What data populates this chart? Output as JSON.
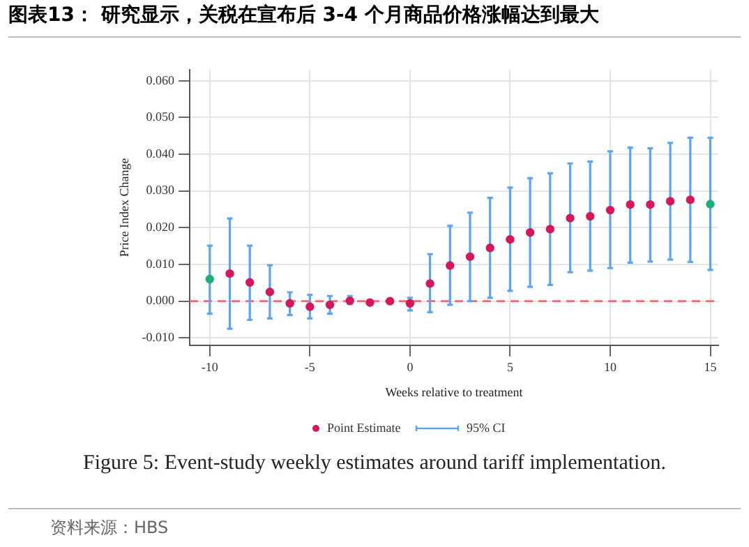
{
  "chart_data": {
    "type": "scatter",
    "title": "图表13：  研究显示，关税在宣布后 3-4 个月商品价格涨幅达到最大",
    "xlabel": "Weeks relative to treatment",
    "ylabel": "Price Index Change",
    "x": [
      -10,
      -9,
      -8,
      -7,
      -6,
      -5,
      -4,
      -3,
      -2,
      -1,
      0,
      1,
      2,
      3,
      4,
      5,
      6,
      7,
      8,
      9,
      10,
      11,
      12,
      13,
      14,
      15
    ],
    "series": [
      {
        "name": "Point Estimate",
        "color": "#d6175c",
        "colors": [
          "#1bb07a",
          "#d6175c",
          "#d6175c",
          "#d6175c",
          "#d6175c",
          "#d6175c",
          "#d6175c",
          "#d6175c",
          "#d6175c",
          "#d6175c",
          "#d6175c",
          "#d6175c",
          "#d6175c",
          "#d6175c",
          "#d6175c",
          "#d6175c",
          "#d6175c",
          "#d6175c",
          "#d6175c",
          "#d6175c",
          "#d6175c",
          "#d6175c",
          "#d6175c",
          "#d6175c",
          "#d6175c",
          "#1bb07a"
        ],
        "values": [
          0.006,
          0.0075,
          0.0051,
          0.0025,
          -0.0006,
          -0.0015,
          -0.001,
          0.0001,
          -0.0004,
          0.0,
          -0.0006,
          0.0048,
          0.0097,
          0.0121,
          0.0145,
          0.0168,
          0.0187,
          0.0196,
          0.0226,
          0.0231,
          0.0248,
          0.0263,
          0.0263,
          0.0272,
          0.0276,
          0.0264
        ],
        "errors": [
          [
            -0.0034,
            0.0151
          ],
          [
            -0.0075,
            0.0225
          ],
          [
            -0.0051,
            0.0151
          ],
          [
            -0.0047,
            0.0098
          ],
          [
            -0.0038,
            0.0024
          ],
          [
            -0.0047,
            0.0017
          ],
          [
            -0.0034,
            0.0014
          ],
          [
            -0.0008,
            0.0014
          ],
          [
            -0.0007,
            -0.0001
          ],
          null,
          [
            -0.0025,
            0.0009
          ],
          [
            -0.003,
            0.0128
          ],
          [
            -0.001,
            0.0205
          ],
          [
            0.0,
            0.0241
          ],
          [
            0.0009,
            0.0281
          ],
          [
            0.0028,
            0.0309
          ],
          [
            0.0039,
            0.0335
          ],
          [
            0.0044,
            0.0348
          ],
          [
            0.0079,
            0.0375
          ],
          [
            0.0083,
            0.038
          ],
          [
            0.009,
            0.0408
          ],
          [
            0.0105,
            0.0418
          ],
          [
            0.0108,
            0.0416
          ],
          [
            0.0113,
            0.0431
          ],
          [
            0.0107,
            0.0445
          ],
          [
            0.0085,
            0.0445
          ]
        ]
      }
    ],
    "xlim": [
      -11,
      15.4
    ],
    "xticks": [
      -10,
      -5,
      0,
      5,
      10,
      15
    ],
    "ylim": [
      -0.012,
      0.063
    ],
    "yticks": [
      {
        "value": -0.01,
        "label": "-0.010"
      },
      {
        "value": 0,
        "label": "0.000"
      },
      {
        "value": 0.01,
        "label": "0.010"
      },
      {
        "value": 0.02,
        "label": "0.020"
      },
      {
        "value": 0.03,
        "label": "0.030"
      },
      {
        "value": 0.04,
        "label": "0.040"
      },
      {
        "value": 0.05,
        "label": "0.050"
      },
      {
        "value": 0.06,
        "label": "0.060"
      }
    ],
    "ref_lines": [
      {
        "axis": "y",
        "value": 0,
        "color": "#f26b6b",
        "line_style": "dashed"
      }
    ],
    "grid": true,
    "legend": "bottom",
    "marker": "circle",
    "annotations": [
      "95% CI",
      "Figure 5: Event-study weekly estimates around tariff implementation.",
      "资料来源：HBS"
    ]
  }
}
